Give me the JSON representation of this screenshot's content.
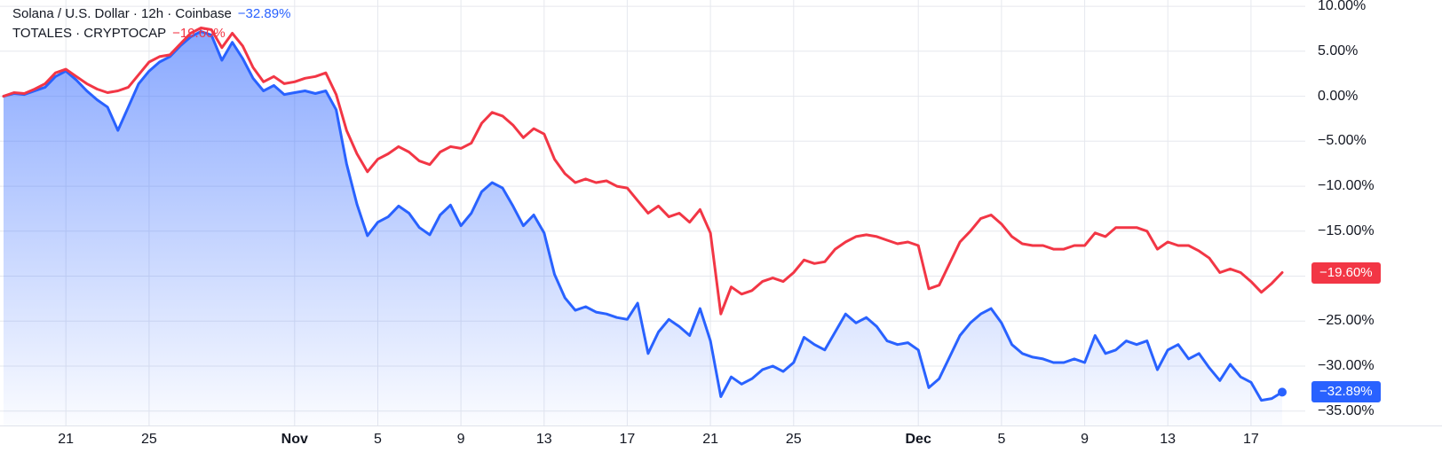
{
  "legend": {
    "line1": {
      "symbol": "Solana / U.S. Dollar · 12h · Coinbase",
      "change": "−32.89%"
    },
    "line2": {
      "symbol": "TOTALES · CRYPTOCAP",
      "change": "−19.60%"
    }
  },
  "colors": {
    "accent_blue": "#2962ff",
    "accent_red": "#f23645",
    "grid": "#e6e8ee",
    "text": "#131722",
    "background": "#ffffff"
  },
  "y_axis": {
    "labels": [
      {
        "value": 10,
        "text": "10.00%"
      },
      {
        "value": 5,
        "text": "5.00%"
      },
      {
        "value": 0,
        "text": "0.00%"
      },
      {
        "value": -5,
        "text": "−5.00%"
      },
      {
        "value": -10,
        "text": "−10.00%"
      },
      {
        "value": -15,
        "text": "−15.00%"
      },
      {
        "value": -25,
        "text": "−25.00%"
      },
      {
        "value": -30,
        "text": "−30.00%"
      },
      {
        "value": -35,
        "text": "−35.00%"
      }
    ],
    "badges": [
      {
        "text": "−19.60%",
        "value": -19.6,
        "color": "#f23645",
        "name": "price-badge-totales"
      },
      {
        "text": "−32.89%",
        "value": -32.89,
        "color": "#2962ff",
        "name": "price-badge-solana"
      }
    ]
  },
  "x_axis": {
    "ticks": [
      {
        "i": 6,
        "label": "21"
      },
      {
        "i": 14,
        "label": "25"
      },
      {
        "i": 28,
        "label": "Nov",
        "month": true
      },
      {
        "i": 36,
        "label": "5"
      },
      {
        "i": 44,
        "label": "9"
      },
      {
        "i": 52,
        "label": "13"
      },
      {
        "i": 60,
        "label": "17"
      },
      {
        "i": 68,
        "label": "21"
      },
      {
        "i": 76,
        "label": "25"
      },
      {
        "i": 88,
        "label": "Dec",
        "month": true
      },
      {
        "i": 96,
        "label": "5"
      },
      {
        "i": 104,
        "label": "9"
      },
      {
        "i": 112,
        "label": "13"
      },
      {
        "i": 120,
        "label": "17"
      }
    ]
  },
  "chart_data": {
    "type": "line",
    "title": "Solana / U.S. Dollar · 12h · Coinbase vs TOTALES · CRYPTOCAP",
    "unit": "%",
    "ylim": [
      -36.6,
      10.7
    ],
    "grid_values": [
      10,
      5,
      0,
      -5,
      -10,
      -15,
      -20,
      -25,
      -30,
      -35
    ],
    "x_tick_labels": [
      "21",
      "25",
      "Nov",
      "5",
      "9",
      "13",
      "17",
      "21",
      "25",
      "Dec",
      "5",
      "9",
      "13",
      "17"
    ],
    "legend_position": "top-left",
    "grid": true,
    "series": [
      {
        "name": "Solana / U.S. Dollar",
        "color": "#2962ff",
        "style": "area",
        "last_change_pct": -32.89,
        "values": [
          0,
          0.3,
          0.2,
          0.6,
          1,
          2.2,
          2.8,
          1.8,
          0.6,
          -0.4,
          -1.2,
          -3.8,
          -1.2,
          1.4,
          2.8,
          3.8,
          4.4,
          5.6,
          6.6,
          7.2,
          6.8,
          4,
          6,
          4.2,
          2,
          0.6,
          1.2,
          0.2,
          0.4,
          0.6,
          0.3,
          0.6,
          -1.5,
          -7.5,
          -12,
          -15.5,
          -14,
          -13.4,
          -12.2,
          -13,
          -14.6,
          -15.4,
          -13.2,
          -12.1,
          -14.4,
          -13,
          -10.6,
          -9.6,
          -10.2,
          -12.2,
          -14.4,
          -13.2,
          -15.2,
          -19.8,
          -22.4,
          -23.8,
          -23.4,
          -24,
          -24.2,
          -24.6,
          -24.8,
          -23,
          -28.6,
          -26.2,
          -24.8,
          -25.6,
          -26.6,
          -23.6,
          -27.2,
          -33.4,
          -31.2,
          -32,
          -31.4,
          -30.4,
          -30,
          -30.6,
          -29.6,
          -26.8,
          -27.6,
          -28.2,
          -26.2,
          -24.2,
          -25.2,
          -24.6,
          -25.6,
          -27.2,
          -27.6,
          -27.4,
          -28.2,
          -32.4,
          -31.4,
          -29,
          -26.6,
          -25.2,
          -24.2,
          -23.6,
          -25.2,
          -27.6,
          -28.6,
          -29,
          -29.2,
          -29.6,
          -29.6,
          -29.2,
          -29.6,
          -26.6,
          -28.6,
          -28.2,
          -27.2,
          -27.6,
          -27.2,
          -30.4,
          -28.2,
          -27.6,
          -29.2,
          -28.6,
          -30.2,
          -31.6,
          -29.8,
          -31.2,
          -31.8,
          -33.8,
          -33.6,
          -32.89
        ]
      },
      {
        "name": "TOTALES · CRYPTOCAP",
        "color": "#f23645",
        "style": "line",
        "last_change_pct": -19.6,
        "values": [
          0,
          0.4,
          0.3,
          0.8,
          1.4,
          2.6,
          3,
          2.2,
          1.4,
          0.8,
          0.4,
          0.6,
          1,
          2.4,
          3.8,
          4.4,
          4.6,
          5.8,
          7,
          7.6,
          7.4,
          5.4,
          7,
          5.6,
          3.2,
          1.6,
          2.2,
          1.4,
          1.6,
          2,
          2.2,
          2.6,
          0.2,
          -3.8,
          -6.4,
          -8.4,
          -7,
          -6.4,
          -5.6,
          -6.2,
          -7.2,
          -7.6,
          -6.2,
          -5.6,
          -5.8,
          -5.2,
          -3,
          -1.8,
          -2.2,
          -3.2,
          -4.6,
          -3.6,
          -4.2,
          -7,
          -8.6,
          -9.6,
          -9.2,
          -9.6,
          -9.4,
          -10,
          -10.2,
          -11.6,
          -13,
          -12.2,
          -13.4,
          -13,
          -14,
          -12.6,
          -15.2,
          -24.2,
          -21.2,
          -22,
          -21.6,
          -20.6,
          -20.2,
          -20.6,
          -19.6,
          -18.2,
          -18.6,
          -18.4,
          -17,
          -16.2,
          -15.6,
          -15.4,
          -15.6,
          -16,
          -16.4,
          -16.2,
          -16.6,
          -21.4,
          -21,
          -18.6,
          -16.2,
          -15,
          -13.6,
          -13.2,
          -14.2,
          -15.6,
          -16.4,
          -16.6,
          -16.6,
          -17,
          -17,
          -16.6,
          -16.6,
          -15.2,
          -15.6,
          -14.6,
          -14.6,
          -14.6,
          -15,
          -17,
          -16.2,
          -16.6,
          -16.6,
          -17.2,
          -18,
          -19.6,
          -19.2,
          -19.6,
          -20.6,
          -21.8,
          -20.8,
          -19.6
        ]
      }
    ]
  }
}
